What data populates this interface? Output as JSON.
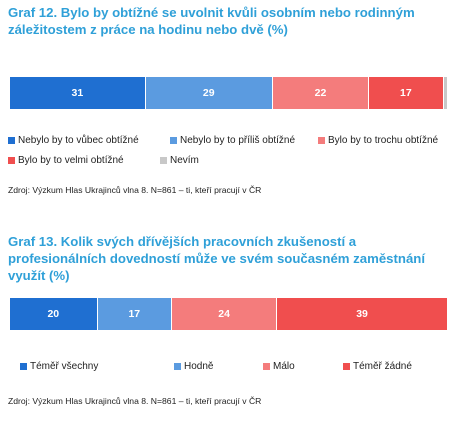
{
  "charts": [
    {
      "title": "Graf 12. Bylo by obtížné se uvolnit kvůli osobním nebo rodinným záležitostem z práce na hodinu nebo dvě (%)",
      "source": "Zdroj: Výzkum Hlas Ukrajinců vlna 8. N=861 – ti, kteří pracují v ČR"
    },
    {
      "title": "Graf 13. Kolik svých dřívějších pracovních zkušeností a profesionálních dovedností může ve svém současném zaměstnání využít (%)",
      "source": "Zdroj: Výzkum Hlas Ukrajinců vlna 8. N=861 – ti, kteří pracují v ČR"
    }
  ],
  "chart_data": [
    {
      "type": "bar",
      "stacked": true,
      "orientation": "horizontal",
      "title": "Graf 12. Bylo by obtížné se uvolnit kvůli osobním nebo rodinným záležitostem z práce na hodinu nebo dvě (%)",
      "series": [
        {
          "name": "Nebylo by to vůbec obtížné",
          "value": 31,
          "color": "#1f6fd1",
          "label": "31"
        },
        {
          "name": "Nebylo by to příliš obtížné",
          "value": 29,
          "color": "#5b9be0",
          "label": "29"
        },
        {
          "name": "Bylo by to trochu obtížné",
          "value": 22,
          "color": "#f47c7c",
          "label": "22"
        },
        {
          "name": "Bylo by to velmi obtížné",
          "value": 17,
          "color": "#f04e4e",
          "label": "17"
        },
        {
          "name": "Nevím",
          "value": 1,
          "color": "#c8c8c8",
          "label": ""
        }
      ],
      "legend": "bottom"
    },
    {
      "type": "bar",
      "stacked": true,
      "orientation": "horizontal",
      "title": "Graf 13. Kolik svých dřívějších pracovních zkušeností a profesionálních dovedností může ve svém současném zaměstnání využít (%)",
      "series": [
        {
          "name": "Téměř všechny",
          "value": 20,
          "color": "#1f6fd1",
          "label": "20"
        },
        {
          "name": "Hodně",
          "value": 17,
          "color": "#5b9be0",
          "label": "17"
        },
        {
          "name": "Málo",
          "value": 24,
          "color": "#f47c7c",
          "label": "24"
        },
        {
          "name": "Téměř žádné",
          "value": 39,
          "color": "#f04e4e",
          "label": "39"
        }
      ],
      "legend": "bottom"
    }
  ]
}
